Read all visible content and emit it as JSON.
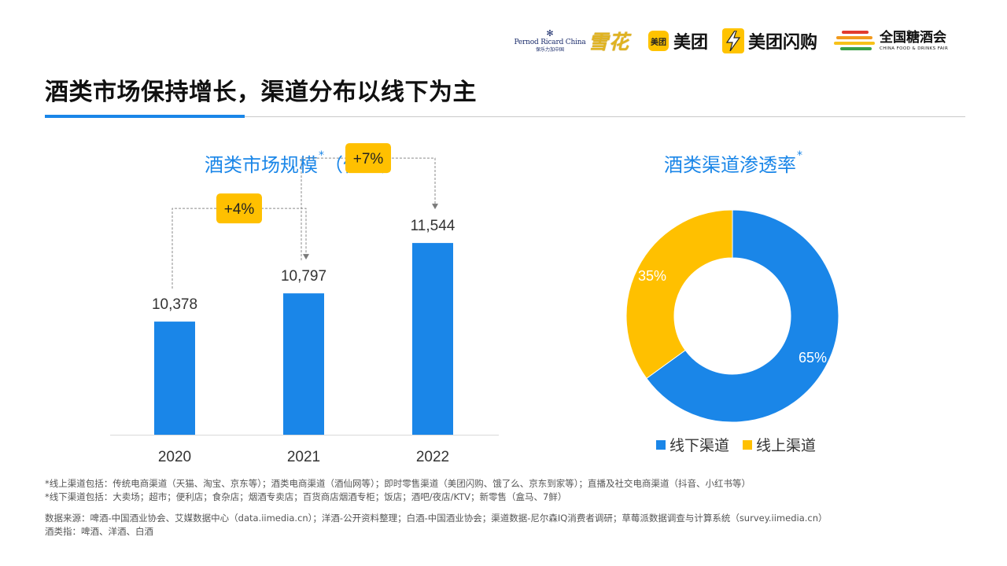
{
  "logos": {
    "pernod": {
      "name": "Pernod Ricard China",
      "sub": "保乐力加中国"
    },
    "xuehua": "雪花",
    "meituan": {
      "badge": "美团",
      "text": "美团"
    },
    "meituan_flash": "美团闪购",
    "fair": {
      "cn": "全国糖酒会",
      "en": "CHINA FOOD & DRINKS FAIR"
    }
  },
  "page_title": "酒类市场保持增长，渠道分布以线下为主",
  "colors": {
    "accent": "#1a86e8",
    "yellow": "#ffc000",
    "callout": "#ffc000"
  },
  "chart_data": [
    {
      "type": "bar",
      "title": "酒类市场规模",
      "title_marker": "*",
      "title_unit": "（亿元）",
      "categories": [
        "2020",
        "2021",
        "2022"
      ],
      "values": [
        10378,
        10797,
        11544
      ],
      "value_labels": [
        "10,378",
        "10,797",
        "11,544"
      ],
      "growth_callouts": [
        {
          "from": "2020",
          "to": "2021",
          "label": "+4%"
        },
        {
          "from": "2021",
          "to": "2022",
          "label": "+7%"
        }
      ],
      "ylim": [
        8700,
        12000
      ],
      "grid": false,
      "color": "#1a86e8"
    },
    {
      "type": "pie",
      "variant": "donut",
      "title": "酒类渠道渗透率",
      "title_marker": "*",
      "series": [
        {
          "name": "线下渠道",
          "value": 65,
          "label": "65%",
          "color": "#1a86e8"
        },
        {
          "name": "线上渠道",
          "value": 35,
          "label": "35%",
          "color": "#ffc000"
        }
      ],
      "legend": "bottom"
    }
  ],
  "footnotes": {
    "online": "*线上渠道包括：传统电商渠道（天猫、淘宝、京东等）；酒类电商渠道（酒仙网等）；即时零售渠道（美团闪购、饿了么、京东到家等）；直播及社交电商渠道（抖音、小红书等）",
    "offline": "*线下渠道包括：大卖场；超市；便利店；食杂店；烟酒专卖店；百货商店烟酒专柜；饭店；酒吧/夜店/KTV；新零售（盒马、7鲜）",
    "source": "数据来源：啤酒-中国酒业协会、艾媒数据中心（data.iimedia.cn）；洋酒-公开资料整理；白酒-中国酒业协会；渠道数据-尼尔森IQ消费者调研；草莓派数据调查与计算系统（survey.iimedia.cn）",
    "scope": "酒类指：啤酒、洋酒、白酒"
  }
}
